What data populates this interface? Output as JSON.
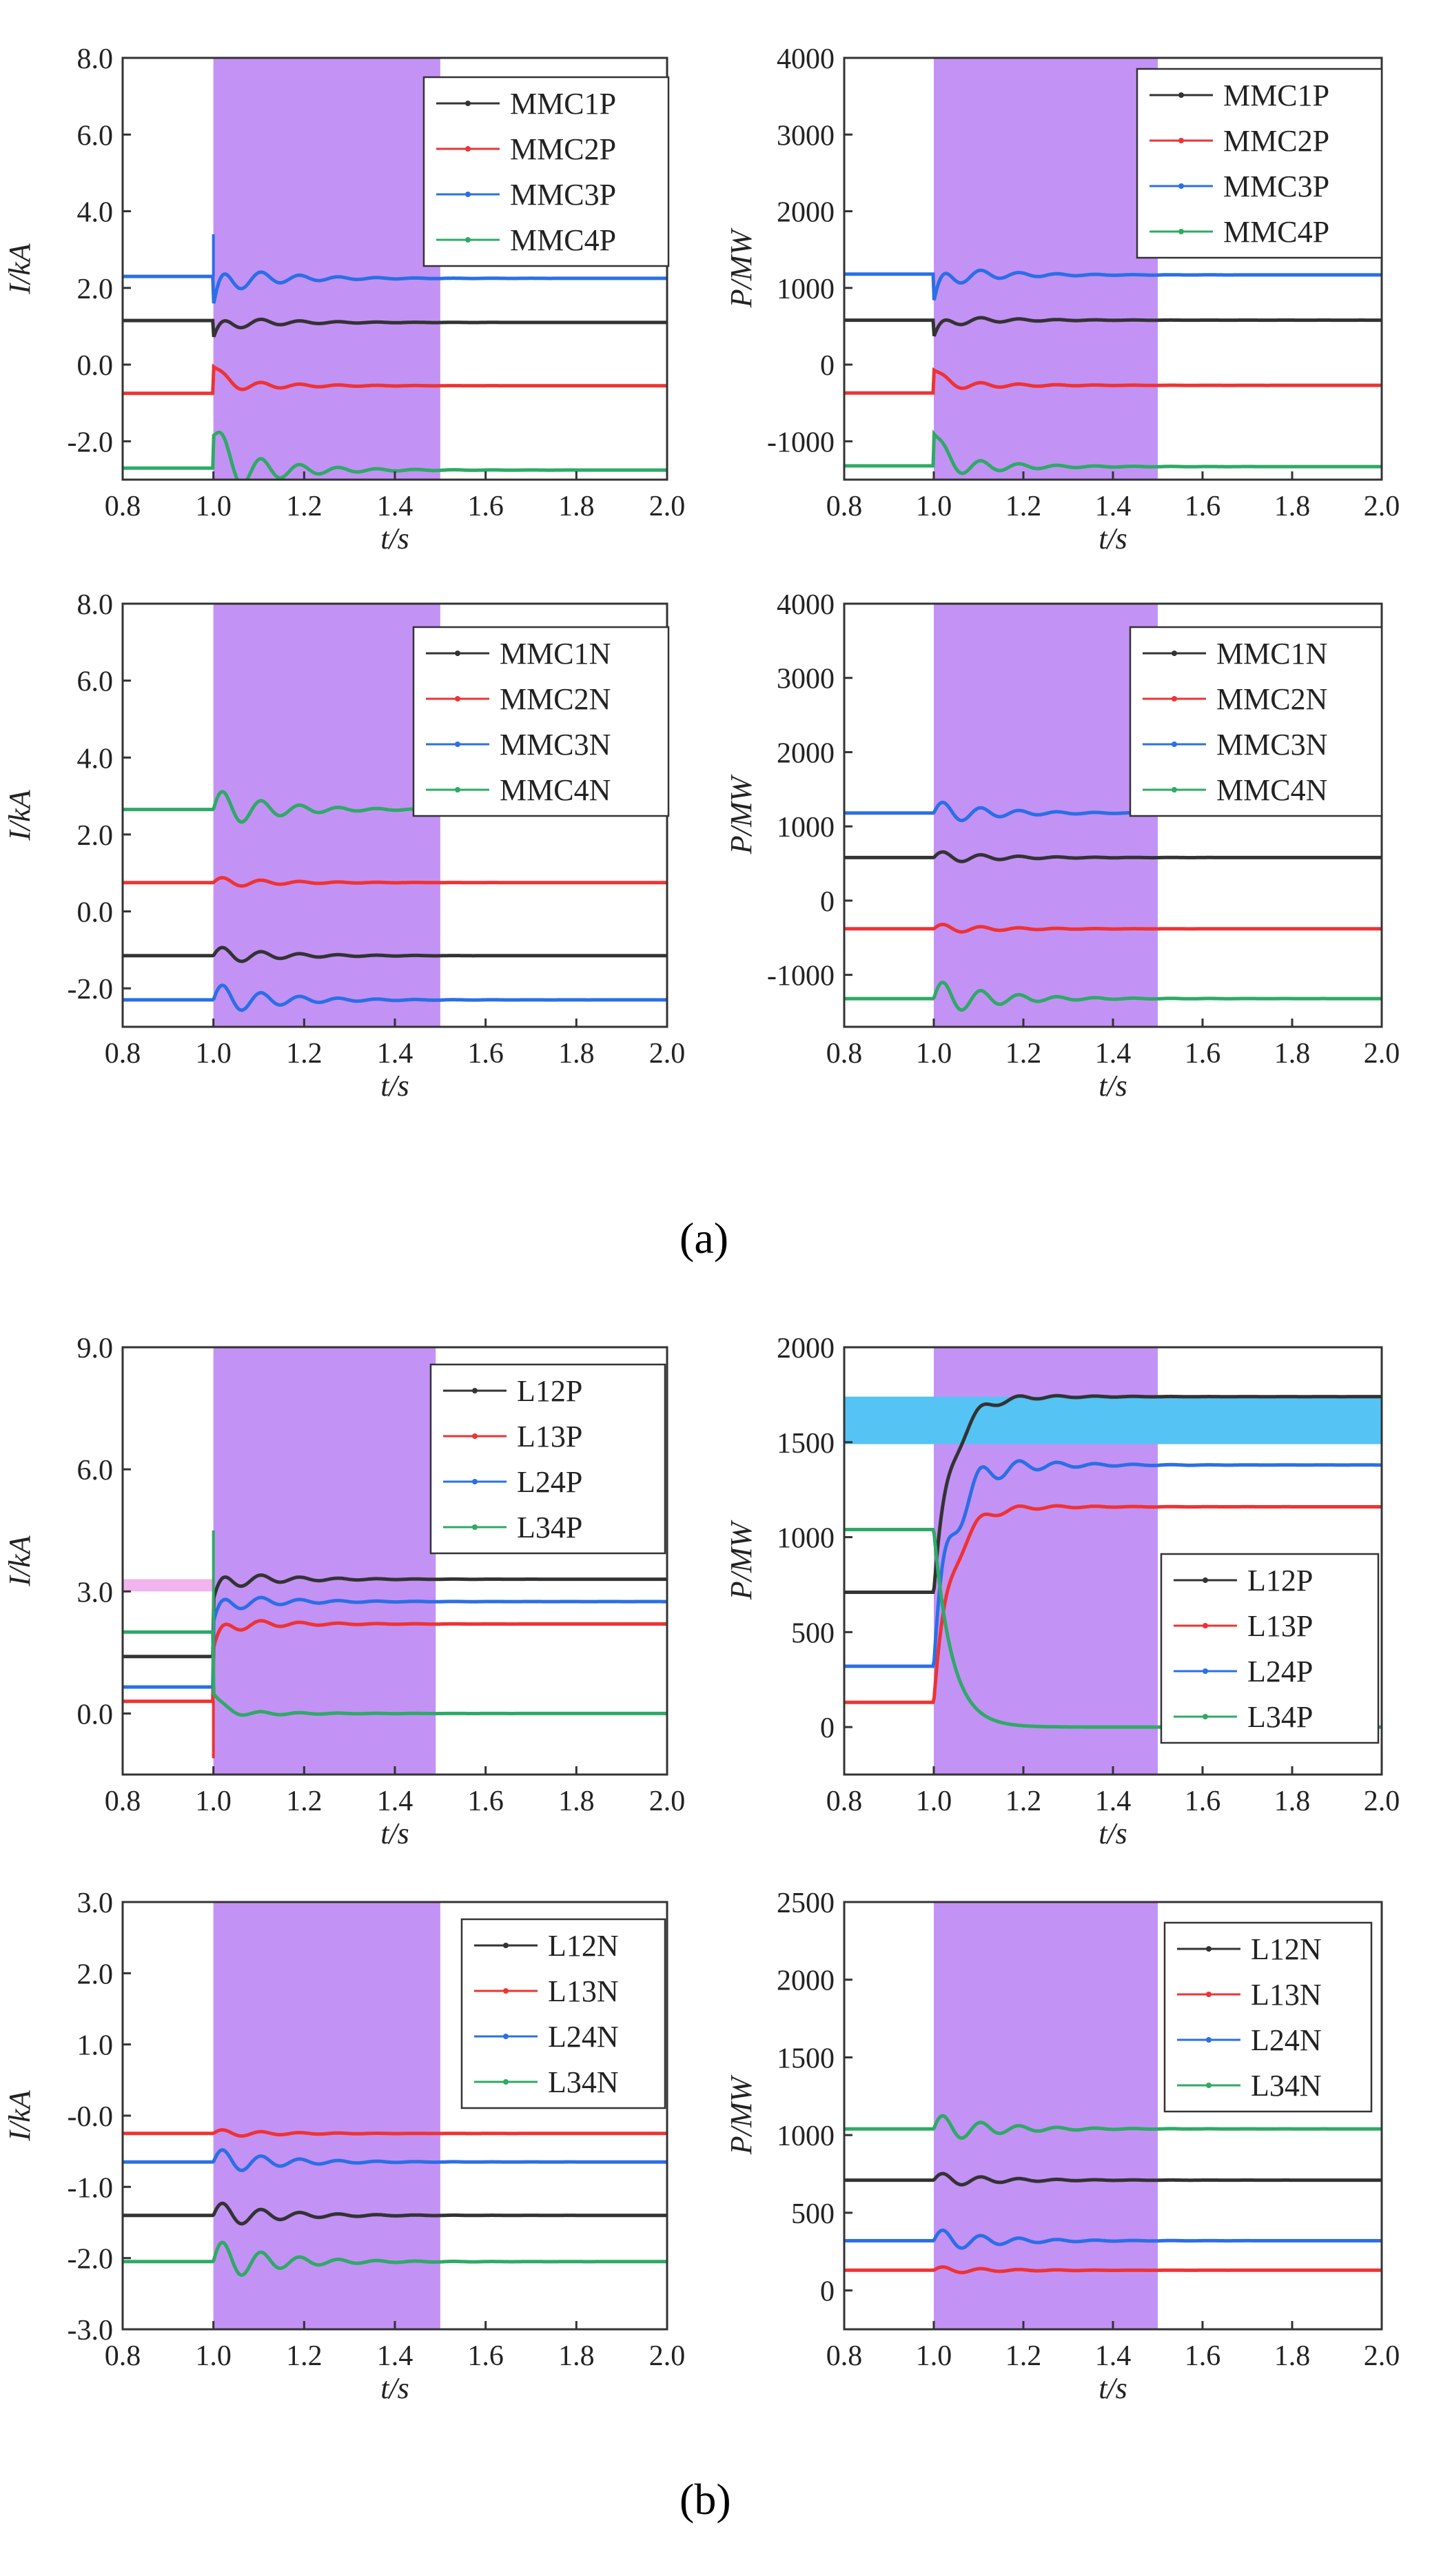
{
  "figure": {
    "label_a": "(a)",
    "label_b": "(b)"
  },
  "colors": {
    "black": "#333333",
    "red": "#ee3333",
    "blue": "#2a6fe6",
    "green": "#2eaa66",
    "fault_window": "#c392f5",
    "band_blue": "#55c3f4",
    "band_pink": "#f2b4ee"
  },
  "chart_data": [
    {
      "id": "a-current-p",
      "type": "line",
      "xlabel": "t/s",
      "ylabel": "I/kA",
      "xlim": [
        0.8,
        2.0
      ],
      "ylim": [
        -3.0,
        8.0
      ],
      "xticks": [
        "0.8",
        "1.0",
        "1.2",
        "1.4",
        "1.6",
        "1.8",
        "2.0"
      ],
      "yticks": [
        "-2.0",
        "0.0",
        "2.0",
        "4.0",
        "6.0",
        "8.0"
      ],
      "shaded_x": [
        1.0,
        1.5
      ],
      "legend_position": "top-right",
      "series": [
        {
          "name": "MMC1P",
          "color": "black",
          "pre": 1.15,
          "post": 1.1,
          "transient": -0.4,
          "amplitude": 0.2,
          "oscillation": 0.1
        },
        {
          "name": "MMC2P",
          "color": "red",
          "pre": -0.75,
          "post": -0.55,
          "transient": 0.5,
          "amplitude": 0.2,
          "oscillation": 0.05
        },
        {
          "name": "MMC3P",
          "color": "blue",
          "pre": 2.3,
          "post": 2.25,
          "transient": -0.7,
          "amplitude": 0.4,
          "spike": 3.4,
          "oscillation": 0.1
        },
        {
          "name": "MMC4P",
          "color": "green",
          "pre": -2.7,
          "post": -2.75,
          "transient": 0.9,
          "amplitude": 0.7,
          "oscillation": 0.1
        }
      ]
    },
    {
      "id": "a-power-p",
      "type": "line",
      "xlabel": "t/s",
      "ylabel": "P/MW",
      "xlim": [
        0.8,
        2.0
      ],
      "ylim": [
        -1500,
        4000
      ],
      "xticks": [
        "0.8",
        "1.0",
        "1.2",
        "1.4",
        "1.6",
        "1.8",
        "2.0"
      ],
      "yticks": [
        "-1000",
        "0",
        "1000",
        "2000",
        "3000",
        "4000"
      ],
      "shaded_x": [
        1.0,
        1.5
      ],
      "legend_position": "top-right",
      "series": [
        {
          "name": "MMC1P",
          "color": "black",
          "pre": 580,
          "post": 580,
          "transient": -220,
          "amplitude": 80,
          "oscillation": 20
        },
        {
          "name": "MMC2P",
          "color": "red",
          "pre": -370,
          "post": -270,
          "transient": 200,
          "amplitude": 80,
          "oscillation": 10
        },
        {
          "name": "MMC3P",
          "color": "blue",
          "pre": 1180,
          "post": 1170,
          "transient": -350,
          "amplitude": 150,
          "oscillation": 20
        },
        {
          "name": "MMC4P",
          "color": "green",
          "pre": -1320,
          "post": -1330,
          "transient": 430,
          "amplitude": 180,
          "oscillation": 20
        }
      ]
    },
    {
      "id": "a-current-n",
      "type": "line",
      "xlabel": "t/s",
      "ylabel": "I/kA",
      "xlim": [
        0.8,
        2.0
      ],
      "ylim": [
        -3.0,
        8.0
      ],
      "xticks": [
        "0.8",
        "1.0",
        "1.2",
        "1.4",
        "1.6",
        "1.8",
        "2.0"
      ],
      "yticks": [
        "-2.0",
        "0.0",
        "2.0",
        "4.0",
        "6.0",
        "8.0"
      ],
      "shaded_x": [
        1.0,
        1.5
      ],
      "legend_position": "top-right",
      "series": [
        {
          "name": "MMC1N",
          "color": "black",
          "pre": -1.15,
          "post": -1.15,
          "transient": 0,
          "amplitude": 0.25,
          "oscillation": 0.1
        },
        {
          "name": "MMC2N",
          "color": "red",
          "pre": 0.75,
          "post": 0.75,
          "transient": 0,
          "amplitude": 0.15,
          "oscillation": 0.08
        },
        {
          "name": "MMC3N",
          "color": "blue",
          "pre": -2.3,
          "post": -2.3,
          "transient": 0,
          "amplitude": 0.45,
          "oscillation": 0.08
        },
        {
          "name": "MMC4N",
          "color": "green",
          "pre": 2.65,
          "post": 2.65,
          "transient": 0,
          "amplitude": 0.55,
          "oscillation": 0.08
        }
      ]
    },
    {
      "id": "a-power-n",
      "type": "line",
      "xlabel": "t/s",
      "ylabel": "P/MW",
      "xlim": [
        0.8,
        2.0
      ],
      "ylim": [
        -1700,
        4000
      ],
      "xticks": [
        "0.8",
        "1.0",
        "1.2",
        "1.4",
        "1.6",
        "1.8",
        "2.0"
      ],
      "yticks": [
        "-1000",
        "0",
        "1000",
        "2000",
        "3000",
        "4000"
      ],
      "shaded_x": [
        1.0,
        1.5
      ],
      "legend_position": "top-right",
      "series": [
        {
          "name": "MMC1N",
          "color": "black",
          "pre": 580,
          "post": 580,
          "transient": 0,
          "amplitude": 90,
          "oscillation": 20
        },
        {
          "name": "MMC2N",
          "color": "red",
          "pre": -380,
          "post": -380,
          "transient": 0,
          "amplitude": 70,
          "oscillation": 15
        },
        {
          "name": "MMC3N",
          "color": "blue",
          "pre": 1180,
          "post": 1180,
          "transient": 0,
          "amplitude": 170,
          "oscillation": 20
        },
        {
          "name": "MMC4N",
          "color": "green",
          "pre": -1320,
          "post": -1320,
          "transient": 0,
          "amplitude": 260,
          "oscillation": 20
        }
      ]
    },
    {
      "id": "b-current-p",
      "type": "line",
      "xlabel": "t/s",
      "ylabel": "I/kA",
      "xlim": [
        0.8,
        2.0
      ],
      "ylim": [
        -1.5,
        9.0
      ],
      "xticks": [
        "0.8",
        "1.0",
        "1.2",
        "1.4",
        "1.6",
        "1.8",
        "2.0"
      ],
      "yticks": [
        "0.0",
        "3.0",
        "6.0",
        "9.0"
      ],
      "shaded_x": [
        1.0,
        1.49
      ],
      "band": {
        "y": [
          3.0,
          3.3
        ],
        "x": [
          0.8,
          1.0
        ],
        "color": "band_pink"
      },
      "legend_position": "top-right",
      "series": [
        {
          "name": "L12P",
          "color": "black",
          "pre": 1.4,
          "post": 3.3,
          "transient": -0.5,
          "amplitude": 0.25,
          "oscillation": 0.15
        },
        {
          "name": "L13P",
          "color": "red",
          "pre": 0.3,
          "post": 2.2,
          "transient": -0.6,
          "amplitude": 0.2,
          "spike": -1.1,
          "oscillation": 0.1
        },
        {
          "name": "L24P",
          "color": "blue",
          "pre": 0.65,
          "post": 2.75,
          "transient": -0.5,
          "amplitude": 0.25,
          "oscillation": 0.1
        },
        {
          "name": "L34P",
          "color": "green",
          "pre": 2.0,
          "post": 0.0,
          "transient": 0.5,
          "amplitude": 0.1,
          "spike": 4.5,
          "oscillation": 0.05
        }
      ]
    },
    {
      "id": "b-power-p",
      "type": "line",
      "xlabel": "t/s",
      "ylabel": "P/MW",
      "xlim": [
        0.8,
        2.0
      ],
      "ylim": [
        -250,
        2000
      ],
      "xticks": [
        "0.8",
        "1.0",
        "1.2",
        "1.4",
        "1.6",
        "1.8",
        "2.0"
      ],
      "yticks": [
        "0",
        "500",
        "1000",
        "1500",
        "2000"
      ],
      "shaded_x": [
        1.0,
        1.5
      ],
      "band": {
        "y": [
          1490,
          1740
        ],
        "x": [
          0.8,
          2.0
        ],
        "color": "band_blue"
      },
      "legend_position": "middle-right",
      "series": [
        {
          "name": "L12P",
          "color": "black",
          "pre": 710,
          "post": 1740,
          "transient": 0,
          "amplitude": 60,
          "rise": true,
          "oscillation": 10
        },
        {
          "name": "L13P",
          "color": "red",
          "pre": 130,
          "post": 1160,
          "transient": 0,
          "amplitude": 60,
          "rise": true,
          "oscillation": 10
        },
        {
          "name": "L24P",
          "color": "blue",
          "pre": 320,
          "post": 1380,
          "transient": 0,
          "amplitude": 150,
          "rise": true,
          "oscillation": 10
        },
        {
          "name": "L34P",
          "color": "green",
          "pre": 1040,
          "post": 0,
          "transient": 0,
          "amplitude": 0,
          "rise": true,
          "oscillation": 5
        }
      ]
    },
    {
      "id": "b-current-n",
      "type": "line",
      "xlabel": "t/s",
      "ylabel": "I/kA",
      "xlim": [
        0.8,
        2.0
      ],
      "ylim": [
        -3.0,
        3.0
      ],
      "xticks": [
        "0.8",
        "1.0",
        "1.2",
        "1.4",
        "1.6",
        "1.8",
        "2.0"
      ],
      "yticks": [
        "-3.0",
        "-2.0",
        "-1.0",
        "-0.0",
        "1.0",
        "2.0",
        "3.0"
      ],
      "shaded_x": [
        1.0,
        1.5
      ],
      "legend_position": "top-right",
      "series": [
        {
          "name": "L12N",
          "color": "black",
          "pre": -1.4,
          "post": -1.4,
          "transient": 0,
          "amplitude": 0.2,
          "oscillation": 0.03
        },
        {
          "name": "L13N",
          "color": "red",
          "pre": -0.25,
          "post": -0.25,
          "transient": 0,
          "amplitude": 0.06,
          "oscillation": 0.02
        },
        {
          "name": "L24N",
          "color": "blue",
          "pre": -0.65,
          "post": -0.65,
          "transient": 0,
          "amplitude": 0.2,
          "oscillation": 0.02
        },
        {
          "name": "L34N",
          "color": "green",
          "pre": -2.05,
          "post": -2.05,
          "transient": 0,
          "amplitude": 0.32,
          "oscillation": 0.03
        }
      ]
    },
    {
      "id": "b-power-n",
      "type": "line",
      "xlabel": "t/s",
      "ylabel": "P/MW",
      "xlim": [
        0.8,
        2.0
      ],
      "ylim": [
        -250,
        2500
      ],
      "xticks": [
        "0.8",
        "1.0",
        "1.2",
        "1.4",
        "1.6",
        "1.8",
        "2.0"
      ],
      "yticks": [
        "0",
        "500",
        "1000",
        "1500",
        "2000",
        "2500"
      ],
      "shaded_x": [
        1.0,
        1.5
      ],
      "legend_position": "top-right",
      "series": [
        {
          "name": "L12N",
          "color": "black",
          "pre": 710,
          "post": 710,
          "transient": 0,
          "amplitude": 50,
          "oscillation": 8
        },
        {
          "name": "L13N",
          "color": "red",
          "pre": 130,
          "post": 130,
          "transient": 0,
          "amplitude": 25,
          "oscillation": 6
        },
        {
          "name": "L24N",
          "color": "blue",
          "pre": 320,
          "post": 320,
          "transient": 0,
          "amplitude": 80,
          "oscillation": 6
        },
        {
          "name": "L34N",
          "color": "green",
          "pre": 1040,
          "post": 1040,
          "transient": 0,
          "amplitude": 100,
          "oscillation": 8
        }
      ]
    }
  ]
}
